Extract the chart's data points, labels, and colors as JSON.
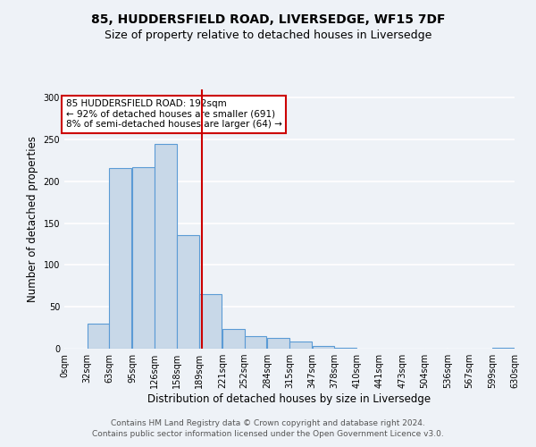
{
  "title": "85, HUDDERSFIELD ROAD, LIVERSEDGE, WF15 7DF",
  "subtitle": "Size of property relative to detached houses in Liversedge",
  "xlabel": "Distribution of detached houses by size in Liversedge",
  "ylabel": "Number of detached properties",
  "bar_left_edges": [
    0,
    32,
    63,
    95,
    126,
    158,
    189,
    221,
    252,
    284,
    315,
    347,
    378,
    410,
    441,
    473,
    504,
    536,
    567,
    599
  ],
  "bar_heights": [
    0,
    30,
    216,
    217,
    245,
    136,
    65,
    24,
    15,
    13,
    9,
    3,
    1,
    0,
    0,
    0,
    0,
    0,
    0,
    1
  ],
  "bin_width": 31,
  "bar_color": "#c8d8e8",
  "bar_edge_color": "#5b9bd5",
  "property_value": 192,
  "vline_color": "#cc0000",
  "annotation_text": "85 HUDDERSFIELD ROAD: 192sqm\n← 92% of detached houses are smaller (691)\n8% of semi-detached houses are larger (64) →",
  "annotation_box_edge": "#cc0000",
  "annotation_box_face": "white",
  "ylim": [
    0,
    310
  ],
  "xtick_labels": [
    "0sqm",
    "32sqm",
    "63sqm",
    "95sqm",
    "126sqm",
    "158sqm",
    "189sqm",
    "221sqm",
    "252sqm",
    "284sqm",
    "315sqm",
    "347sqm",
    "378sqm",
    "410sqm",
    "441sqm",
    "473sqm",
    "504sqm",
    "536sqm",
    "567sqm",
    "599sqm",
    "630sqm"
  ],
  "footer_line1": "Contains HM Land Registry data © Crown copyright and database right 2024.",
  "footer_line2": "Contains public sector information licensed under the Open Government Licence v3.0.",
  "background_color": "#eef2f7",
  "grid_color": "white",
  "title_fontsize": 10,
  "subtitle_fontsize": 9,
  "axis_label_fontsize": 8.5,
  "tick_fontsize": 7,
  "footer_fontsize": 6.5,
  "annotation_fontsize": 7.5
}
